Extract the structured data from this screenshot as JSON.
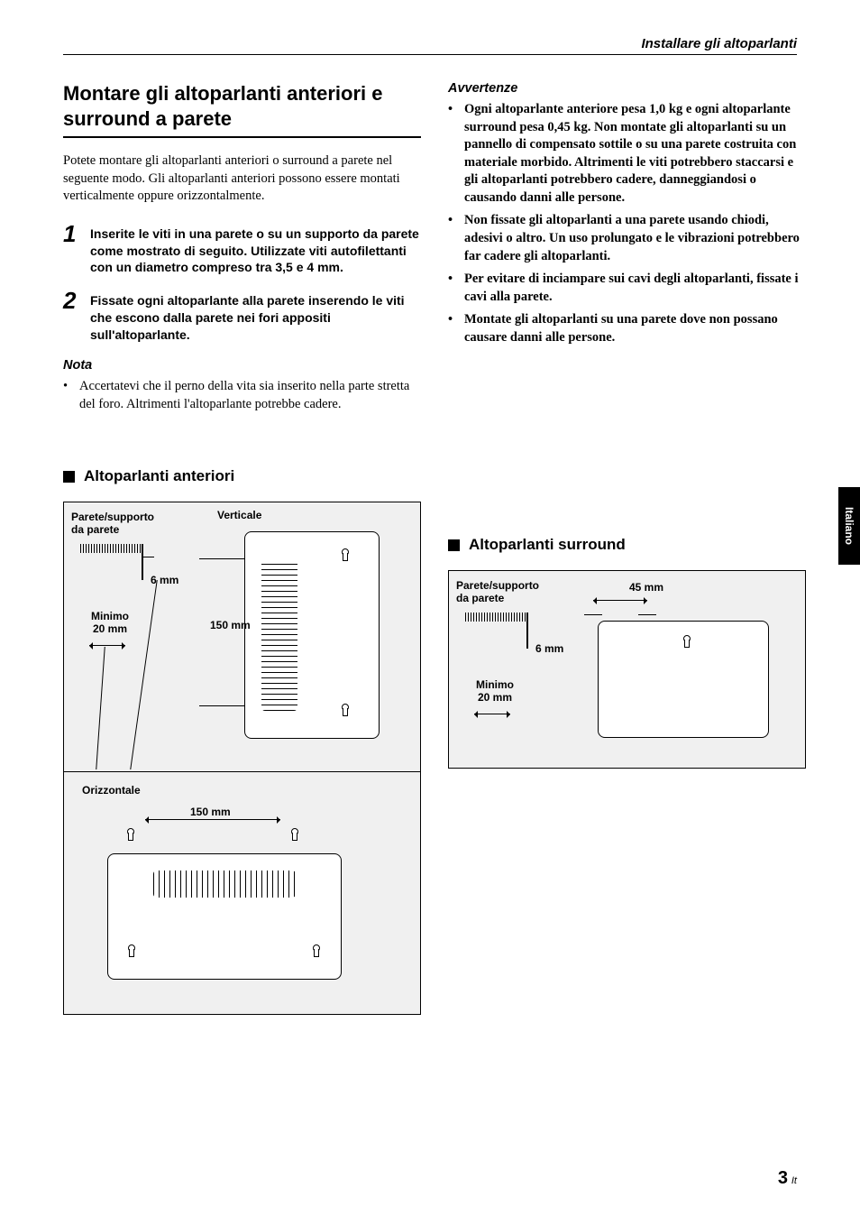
{
  "header": {
    "running_title": "Installare gli altoparlanti"
  },
  "left": {
    "heading": "Montare gli altoparlanti anteriori e surround a parete",
    "intro": "Potete montare gli altoparlanti anteriori o surround a parete nel seguente modo. Gli altoparlanti anteriori possono essere montati verticalmente oppure orizzontalmente.",
    "steps": [
      {
        "num": "1",
        "text": "Inserite le viti in una parete o su un supporto da parete come mostrato di seguito. Utilizzate viti autofilettanti con un diametro compreso tra 3,5 e 4 mm."
      },
      {
        "num": "2",
        "text": "Fissate ogni altoparlante alla parete inserendo le viti che escono dalla parete nei fori appositi sull'altoparlante."
      }
    ],
    "note_label": "Nota",
    "note_items": [
      "Accertatevi che il perno della vita sia inserito nella parte stretta del foro. Altrimenti l'altoparlante potrebbe cadere."
    ]
  },
  "right": {
    "warn_label": "Avvertenze",
    "warn_items": [
      "Ogni altoparlante anteriore pesa 1,0 kg e ogni altoparlante surround pesa 0,45 kg. Non montate gli altoparlanti su un pannello di compensato sottile o su una parete costruita con materiale morbido. Altrimenti le viti potrebbero staccarsi e gli altoparlanti potrebbero cadere, danneggiandosi o causando danni alle persone.",
      "Non fissate gli altoparlanti a una parete usando chiodi, adesivi o altro. Un uso prolungato e le vibrazioni potrebbero far cadere gli altoparlanti.",
      "Per evitare di inciampare sui cavi degli altoparlanti, fissate i cavi alla parete.",
      "Montate gli altoparlanti su una parete dove non possano causare danni alle persone."
    ]
  },
  "diagrams": {
    "front_heading": "Altoparlanti anteriori",
    "surround_heading": "Altoparlanti surround",
    "labels": {
      "wall_bracket": "Parete/supporto\nda parete",
      "vertical": "Verticale",
      "horizontal": "Orizzontale",
      "gap_6mm": "6 mm",
      "min_20mm": "Minimo\n20 mm",
      "dim_150mm": "150 mm",
      "dim_45mm": "45 mm"
    }
  },
  "side_tab": "Italiano",
  "footer": {
    "page": "3",
    "suffix": "It"
  }
}
